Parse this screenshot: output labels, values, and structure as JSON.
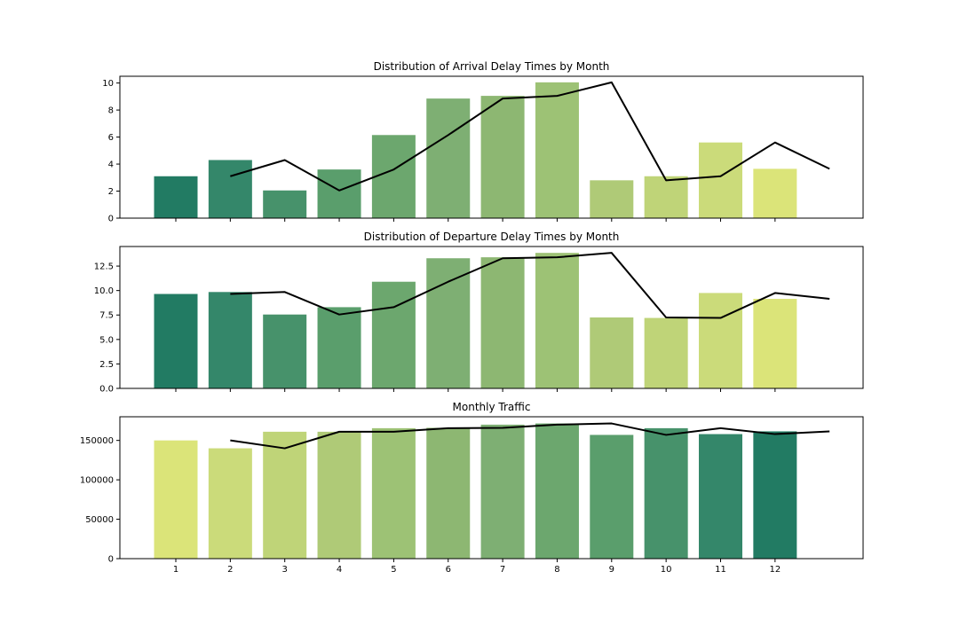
{
  "chart_data": [
    {
      "type": "bar",
      "title": "Distribution of Arrival Delay Times by Month",
      "xlabel": "",
      "ylabel": "",
      "categories": [
        "1",
        "2",
        "3",
        "4",
        "5",
        "6",
        "7",
        "8",
        "9",
        "10",
        "11",
        "12"
      ],
      "values": [
        3.1,
        4.3,
        2.05,
        3.6,
        6.15,
        8.85,
        9.05,
        10.05,
        2.8,
        3.1,
        5.6,
        3.65
      ],
      "line_overlay": {
        "x": [
          2,
          3,
          4,
          5,
          6,
          7,
          8,
          9,
          10,
          11,
          12,
          13
        ],
        "y": [
          3.1,
          4.3,
          2.05,
          3.6,
          6.15,
          8.85,
          9.05,
          10.05,
          2.8,
          3.1,
          5.6,
          3.65
        ]
      },
      "ylim": [
        0,
        10.5
      ],
      "yticks": [
        0,
        2,
        4,
        6,
        8,
        10
      ],
      "ytick_labels": [
        "0",
        "2",
        "4",
        "6",
        "8",
        "10"
      ],
      "show_xtick_labels": false,
      "palette": "green-to-yellow",
      "grid": false
    },
    {
      "type": "bar",
      "title": "Distribution of Departure Delay Times by Month",
      "xlabel": "",
      "ylabel": "",
      "categories": [
        "1",
        "2",
        "3",
        "4",
        "5",
        "6",
        "7",
        "8",
        "9",
        "10",
        "11",
        "12"
      ],
      "values": [
        9.65,
        9.85,
        7.55,
        8.3,
        10.9,
        13.3,
        13.4,
        13.85,
        7.25,
        7.2,
        9.75,
        9.15
      ],
      "line_overlay": {
        "x": [
          2,
          3,
          4,
          5,
          6,
          7,
          8,
          9,
          10,
          11,
          12,
          13
        ],
        "y": [
          9.65,
          9.85,
          7.55,
          8.3,
          10.9,
          13.3,
          13.4,
          13.85,
          7.25,
          7.2,
          9.75,
          9.15
        ]
      },
      "ylim": [
        0,
        14.5
      ],
      "yticks": [
        0,
        2.5,
        5,
        7.5,
        10,
        12.5
      ],
      "ytick_labels": [
        "0.0",
        "2.5",
        "5.0",
        "7.5",
        "10.0",
        "12.5"
      ],
      "show_xtick_labels": false,
      "palette": "green-to-yellow",
      "grid": false
    },
    {
      "type": "bar",
      "title": "Monthly Traffic",
      "xlabel": "",
      "ylabel": "",
      "categories": [
        "1",
        "2",
        "3",
        "4",
        "5",
        "6",
        "7",
        "8",
        "9",
        "10",
        "11",
        "12"
      ],
      "values": [
        150000,
        140000,
        161000,
        161000,
        165500,
        166000,
        170000,
        171500,
        157000,
        165500,
        158000,
        161500
      ],
      "line_overlay": {
        "x": [
          2,
          3,
          4,
          5,
          6,
          7,
          8,
          9,
          10,
          11,
          12,
          13
        ],
        "y": [
          150000,
          140000,
          161000,
          161000,
          165500,
          166000,
          170000,
          171500,
          157000,
          165500,
          158000,
          161500
        ]
      },
      "ylim": [
        0,
        180000
      ],
      "yticks": [
        0,
        50000,
        100000,
        150000
      ],
      "ytick_labels": [
        "0",
        "50000",
        "100000",
        "150000"
      ],
      "show_xtick_labels": true,
      "palette": "yellow-to-green",
      "grid": false
    }
  ],
  "colors": {
    "green_to_yellow": [
      "#227b63",
      "#34876a",
      "#47926b",
      "#5a9e6c",
      "#6ca76e",
      "#7eaf73",
      "#8db772",
      "#9dc275",
      "#afca77",
      "#bfd478",
      "#cbdb7a",
      "#dbe479"
    ],
    "line": "#000000",
    "axes": "#000000"
  }
}
